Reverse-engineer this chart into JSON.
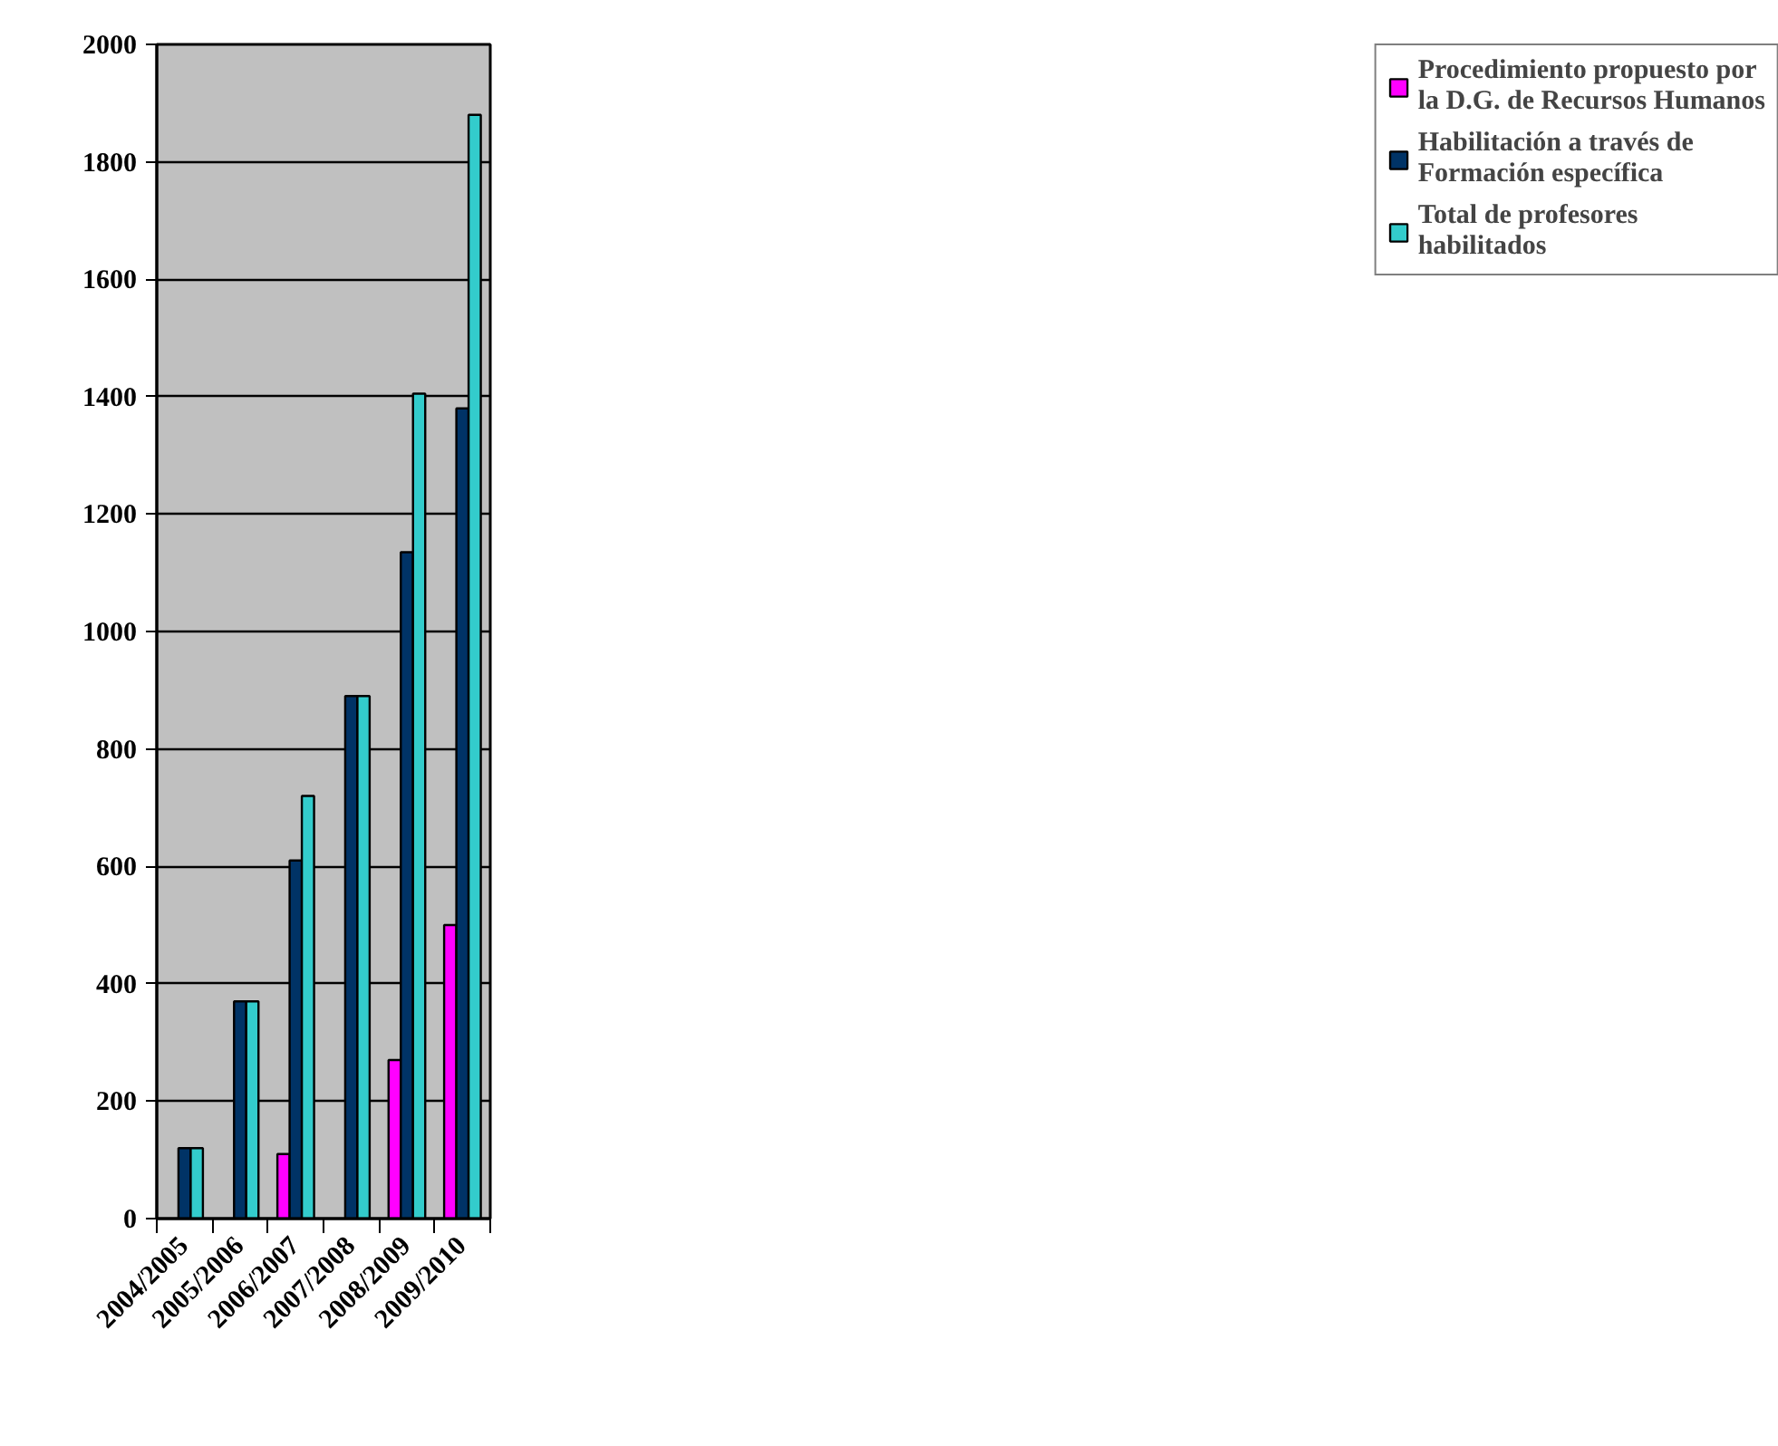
{
  "chart_data": {
    "type": "bar",
    "categories": [
      "2004/2005",
      "2005/2006",
      "2006/2007",
      "2007/2008",
      "2008/2009",
      "2009/2010"
    ],
    "series": [
      {
        "name": "Procedimiento propuesto por la D.G. de Recursos Humanos",
        "color": "#ff00ff",
        "values": [
          null,
          null,
          110,
          null,
          270,
          500
        ]
      },
      {
        "name": "Habilitación a través de Formación específica",
        "color": "#003366",
        "values": [
          120,
          370,
          610,
          890,
          1135,
          1380
        ]
      },
      {
        "name": "Total de profesores habilitados",
        "color": "#33cccc",
        "values": [
          120,
          370,
          720,
          890,
          1405,
          1880
        ]
      }
    ],
    "ylim": [
      0,
      2000
    ],
    "yticks": [
      0,
      200,
      400,
      600,
      800,
      1000,
      1200,
      1400,
      1600,
      1800,
      2000
    ],
    "grid": "y",
    "legend": "right"
  }
}
